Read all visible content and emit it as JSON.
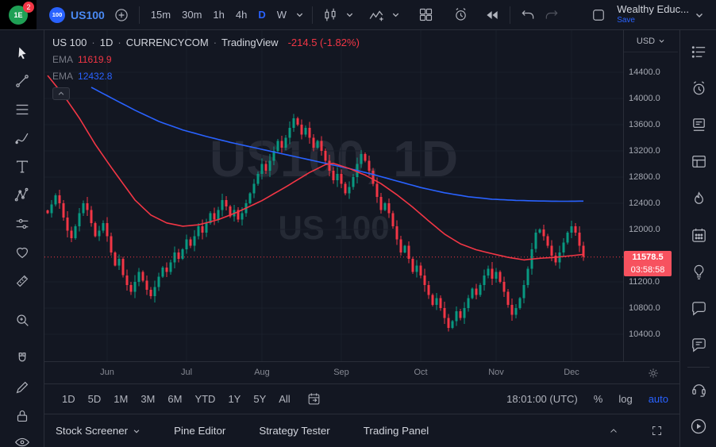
{
  "colors": {
    "background": "#131722",
    "accent_blue": "#2962ff",
    "red": "#f23645",
    "green": "#089981",
    "last_price_badge": "#f7525f",
    "symbol_blue": "#4a8af4",
    "logo_green": "#1fa055"
  },
  "topbar": {
    "logo": {
      "text": "1E",
      "badge": "2"
    },
    "symbol": {
      "badge": "100",
      "label": "US100"
    },
    "timeframes": [
      "15m",
      "30m",
      "1h",
      "4h",
      "D",
      "W"
    ],
    "active_timeframe": "D",
    "account": {
      "name": "Wealthy Educ...",
      "save_label": "Save"
    }
  },
  "left_toolbar": {
    "tools": [
      "cursor",
      "trend-line",
      "fib-retracement",
      "brush",
      "text",
      "xabcd-pattern",
      "position",
      "emoji",
      "measure",
      "zoom",
      "magnet",
      "drawing-mode",
      "lock",
      "hide"
    ]
  },
  "right_sidebar": {
    "items": [
      "watchlist",
      "alerts",
      "news",
      "data-window",
      "hotlists",
      "calendar",
      "ideas",
      "chat",
      "messages",
      "help",
      "streams"
    ]
  },
  "chart": {
    "header": {
      "symbol": "US 100",
      "dot": "·",
      "interval": "1D",
      "exchange": "CURRENCYCOM",
      "provider": "TradingView",
      "change": "-214.5 (-1.82%)"
    },
    "indicators": [
      {
        "name": "EMA",
        "value": "11619.9",
        "color": "#f23645"
      },
      {
        "name": "EMA",
        "value": "12432.8",
        "color": "#2962ff"
      }
    ],
    "watermark": {
      "line1": "US100, 1D",
      "line2": "US 100"
    },
    "price_scale": {
      "currency": "USD",
      "ticks": [
        14400,
        14000,
        13600,
        13200,
        12800,
        12400,
        12000,
        11200,
        10800,
        10400
      ],
      "last_price": "11578.5",
      "countdown": "03:58:58"
    }
  },
  "chart_data": {
    "type": "candlestick",
    "title": "US 100 · 1D · CURRENCYCOM",
    "interval": "1D",
    "price_axis_top": 14400,
    "tick_step": 400,
    "last_price": 11578.5,
    "change": -214.5,
    "change_pct": -1.82,
    "up_color": "#089981",
    "down_color": "#f23645",
    "months": [
      {
        "label": "Jun",
        "bar": 15
      },
      {
        "label": "Jul",
        "bar": 35
      },
      {
        "label": "Aug",
        "bar": 54
      },
      {
        "label": "Sep",
        "bar": 74
      },
      {
        "label": "Oct",
        "bar": 94
      },
      {
        "label": "Nov",
        "bar": 113
      },
      {
        "label": "Dec",
        "bar": 132
      }
    ],
    "closes": [
      12250,
      12380,
      12520,
      12400,
      12180,
      11980,
      11870,
      12050,
      12250,
      12400,
      12300,
      12100,
      11900,
      11980,
      12100,
      11900,
      11650,
      11450,
      11550,
      11300,
      11150,
      11050,
      11200,
      11350,
      11220,
      11080,
      10980,
      11120,
      11280,
      11420,
      11350,
      11500,
      11650,
      11550,
      11700,
      11850,
      11750,
      11900,
      12050,
      11950,
      12100,
      12250,
      12150,
      12300,
      12450,
      12350,
      12200,
      12300,
      12150,
      12250,
      12400,
      12550,
      12700,
      12850,
      13000,
      12900,
      13050,
      13200,
      13350,
      13250,
      13400,
      13550,
      13700,
      13600,
      13450,
      13550,
      13400,
      13250,
      13350,
      13200,
      13050,
      12900,
      12750,
      12850,
      12700,
      12550,
      12650,
      12800,
      13000,
      13150,
      13050,
      12900,
      12700,
      12500,
      12300,
      12400,
      12250,
      12050,
      11850,
      11650,
      11750,
      11550,
      11350,
      11450,
      11300,
      11150,
      11000,
      10850,
      10950,
      10800,
      10650,
      10500,
      10600,
      10750,
      10650,
      10800,
      10950,
      11100,
      11000,
      11150,
      11300,
      11400,
      11250,
      11350,
      11200,
      11050,
      10850,
      10700,
      10800,
      10950,
      11150,
      11400,
      11700,
      11950,
      12000,
      11900,
      11750,
      11600,
      11500,
      11650,
      11800,
      11950,
      12050,
      11950,
      11750,
      11578.5
    ],
    "ema_fast": {
      "name": "EMA",
      "value": 11619.9,
      "color": "#f23645",
      "anchors": [
        [
          0,
          14350
        ],
        [
          4,
          14050
        ],
        [
          8,
          13700
        ],
        [
          12,
          13300
        ],
        [
          16,
          12950
        ],
        [
          19,
          12700
        ],
        [
          22,
          12450
        ],
        [
          26,
          12220
        ],
        [
          30,
          12100
        ],
        [
          34,
          12050
        ],
        [
          38,
          12070
        ],
        [
          43,
          12150
        ],
        [
          48,
          12270
        ],
        [
          54,
          12440
        ],
        [
          60,
          12650
        ],
        [
          66,
          12870
        ],
        [
          70,
          12990
        ],
        [
          72,
          13010
        ],
        [
          76,
          12930
        ],
        [
          80,
          12830
        ],
        [
          84,
          12700
        ],
        [
          88,
          12530
        ],
        [
          92,
          12340
        ],
        [
          96,
          12130
        ],
        [
          100,
          11930
        ],
        [
          104,
          11780
        ],
        [
          108,
          11690
        ],
        [
          112,
          11630
        ],
        [
          116,
          11575
        ],
        [
          120,
          11535
        ],
        [
          124,
          11560
        ],
        [
          128,
          11575
        ],
        [
          132,
          11600
        ],
        [
          135,
          11620
        ]
      ]
    },
    "ema_slow": {
      "name": "EMA",
      "value": 12432.8,
      "color": "#2962ff",
      "anchors": [
        [
          11,
          14170
        ],
        [
          16,
          14010
        ],
        [
          22,
          13820
        ],
        [
          28,
          13650
        ],
        [
          34,
          13520
        ],
        [
          40,
          13420
        ],
        [
          46,
          13330
        ],
        [
          52,
          13250
        ],
        [
          58,
          13170
        ],
        [
          64,
          13090
        ],
        [
          70,
          13010
        ],
        [
          76,
          12930
        ],
        [
          82,
          12840
        ],
        [
          88,
          12740
        ],
        [
          94,
          12640
        ],
        [
          100,
          12560
        ],
        [
          106,
          12500
        ],
        [
          112,
          12462
        ],
        [
          118,
          12444
        ],
        [
          124,
          12434
        ],
        [
          130,
          12430
        ],
        [
          135,
          12433
        ]
      ]
    }
  },
  "footer": {
    "ranges": [
      "1D",
      "5D",
      "1M",
      "3M",
      "6M",
      "YTD",
      "1Y",
      "5Y",
      "All"
    ],
    "clock": "18:01:00 (UTC)",
    "percent_label": "%",
    "log_label": "log",
    "auto_label": "auto",
    "tabs": [
      {
        "label": "Stock Screener",
        "chevron": true
      },
      {
        "label": "Pine Editor",
        "chevron": false
      },
      {
        "label": "Strategy Tester",
        "chevron": false
      },
      {
        "label": "Trading Panel",
        "chevron": false
      }
    ]
  }
}
